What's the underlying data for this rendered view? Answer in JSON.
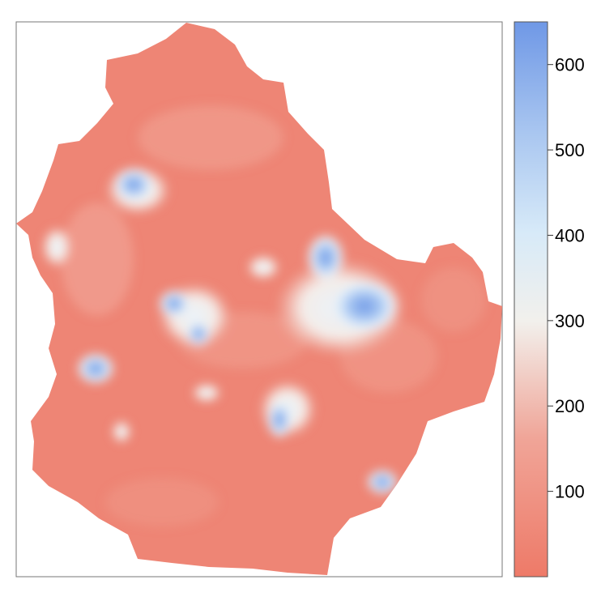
{
  "figure": {
    "type": "raster-map",
    "colorbar": {
      "ticks": [
        {
          "value": 100,
          "label": "100"
        },
        {
          "value": 200,
          "label": "200"
        },
        {
          "value": 300,
          "label": "300"
        },
        {
          "value": 400,
          "label": "400"
        },
        {
          "value": 500,
          "label": "500"
        },
        {
          "value": 600,
          "label": "600"
        }
      ],
      "range": [
        0,
        650
      ],
      "colors": {
        "low": "#ee7a68",
        "mid": "#f2f0ec",
        "high": "#6f98e6"
      }
    },
    "legend_placement": "right"
  }
}
